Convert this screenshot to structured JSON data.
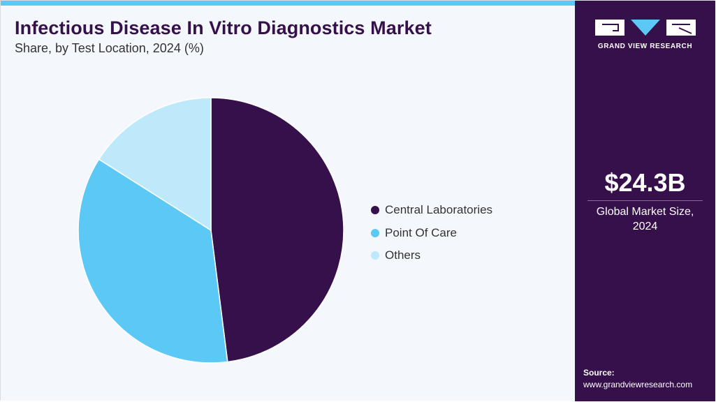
{
  "header": {
    "title": "Infectious Disease In Vitro Diagnostics Market",
    "subtitle": "Share, by Test Location, 2024 (%)"
  },
  "chart_data": {
    "type": "pie",
    "title": "Infectious Disease In Vitro Diagnostics Market",
    "subtitle": "Share, by Test Location, 2024 (%)",
    "categories": [
      "Central Laboratories",
      "Point Of Care",
      "Others"
    ],
    "values": [
      48,
      36,
      16
    ],
    "colors": [
      "#36104a",
      "#5bc8f5",
      "#bde9fa"
    ],
    "start": "12 o'clock",
    "direction": "clockwise",
    "legend": "right"
  },
  "sidebar": {
    "logo_text": "GRAND VIEW RESEARCH",
    "market_value": "$24.3B",
    "market_caption_line1": "Global Market Size,",
    "market_caption_line2": "2024",
    "source_label": "Source:",
    "source_url": "www.grandviewresearch.com"
  },
  "colors": {
    "accent": "#36104a",
    "highlight": "#5bc8f5",
    "background": "#f4f8fc"
  }
}
